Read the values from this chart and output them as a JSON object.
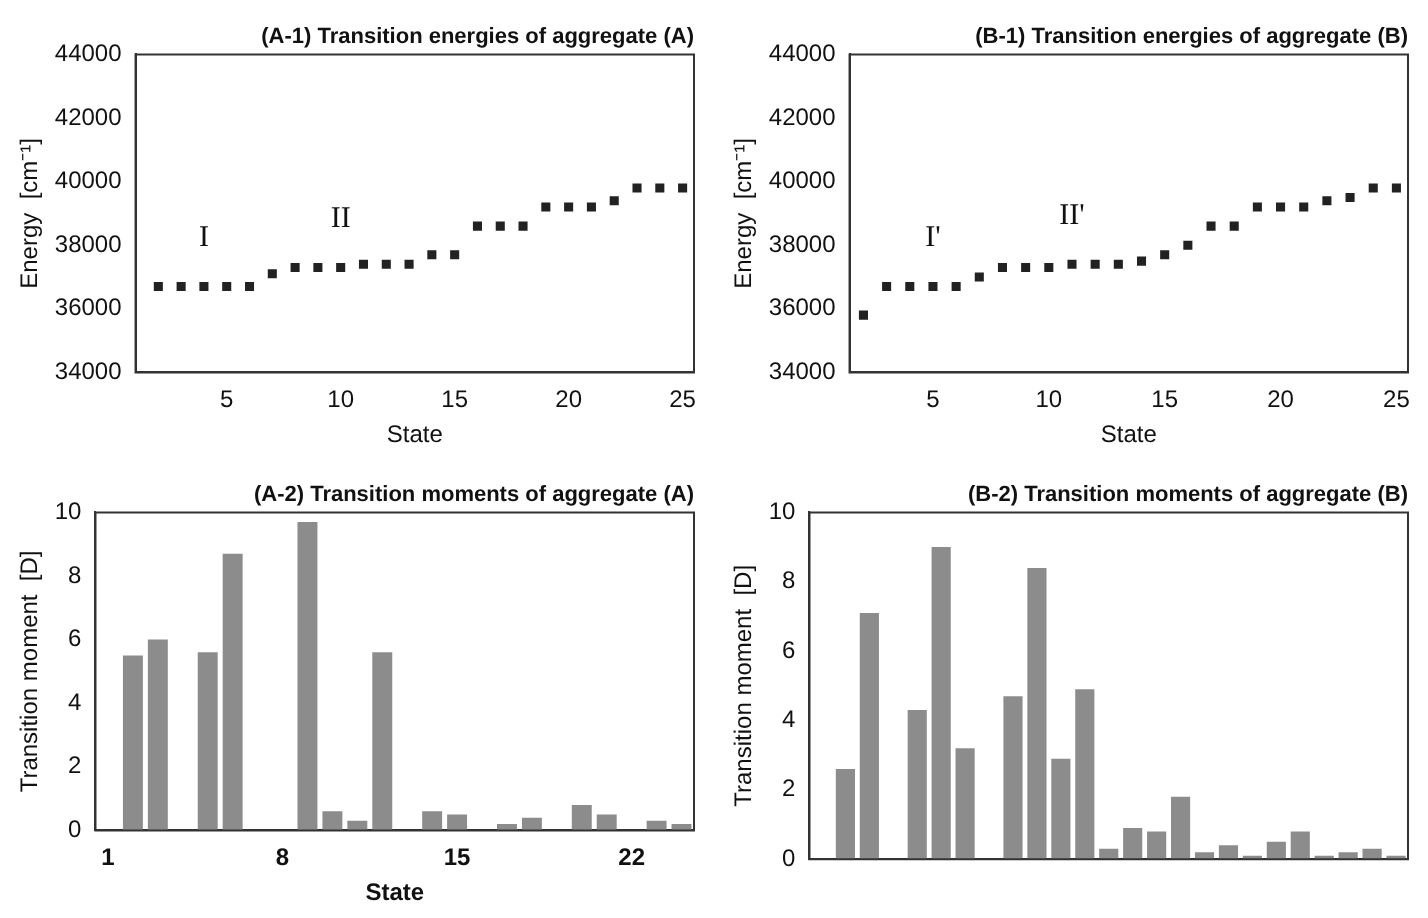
{
  "chart_data": [
    {
      "type": "scatter",
      "title": "(A-1) Transition energies of aggregate (A)",
      "xlabel": "State",
      "ylabel": "Energy  [cm⁻¹]",
      "series": [
        {
          "color": "#222222",
          "x": [
            2,
            3,
            4,
            5,
            6,
            7,
            8,
            9,
            10,
            11,
            12,
            13,
            14,
            15,
            16,
            17,
            18,
            19,
            20,
            21,
            22,
            23,
            24,
            25
          ],
          "values": [
            36700,
            36700,
            36700,
            36700,
            36700,
            37100,
            37300,
            37300,
            37300,
            37400,
            37400,
            37400,
            37700,
            37700,
            38600,
            38600,
            38600,
            39200,
            39200,
            39200,
            39400,
            39800,
            39800,
            39800
          ]
        }
      ],
      "xlim": [
        1,
        25.5
      ],
      "xticks": [
        5,
        10,
        15,
        20,
        25
      ],
      "ylim": [
        34000,
        44000
      ],
      "yticks": [
        34000,
        36000,
        38000,
        40000,
        42000,
        44000
      ],
      "grid": false,
      "legend": false,
      "marker": "square",
      "annotations": [
        {
          "text": "I",
          "x": 4,
          "y": 36700
        },
        {
          "text": "II",
          "x": 10,
          "y": 37300
        }
      ]
    },
    {
      "type": "scatter",
      "title": "(B-1) Transition energies of aggregate (B)",
      "xlabel": "State",
      "ylabel": "Energy  [cm⁻¹]",
      "series": [
        {
          "color": "#222222",
          "x": [
            2,
            3,
            4,
            5,
            6,
            7,
            8,
            9,
            10,
            11,
            12,
            13,
            14,
            15,
            16,
            17,
            18,
            19,
            20,
            21,
            22,
            23,
            24,
            25
          ],
          "values": [
            35800,
            36700,
            36700,
            36700,
            36700,
            37000,
            37300,
            37300,
            37300,
            37400,
            37400,
            37400,
            37500,
            37700,
            38000,
            38600,
            38600,
            39200,
            39200,
            39200,
            39400,
            39500,
            39800,
            39800
          ]
        }
      ],
      "xlim": [
        1.4,
        25.5
      ],
      "xticks": [
        5,
        10,
        15,
        20,
        25
      ],
      "ylim": [
        34000,
        44000
      ],
      "yticks": [
        34000,
        36000,
        38000,
        40000,
        42000,
        44000
      ],
      "grid": false,
      "legend": false,
      "marker": "square",
      "annotations": [
        {
          "text": "I'",
          "x": 5,
          "y": 36700
        },
        {
          "text": "II'",
          "x": 11,
          "y": 37400
        }
      ]
    },
    {
      "type": "bar",
      "title": "(A-2) Transition moments of aggregate (A)",
      "xlabel": "State",
      "ylabel": "Transition moment  [D]",
      "categories": [
        "1",
        null,
        null,
        null,
        null,
        null,
        null,
        "8",
        null,
        null,
        null,
        null,
        null,
        null,
        "15",
        null,
        null,
        null,
        null,
        null,
        null,
        "22",
        null,
        null
      ],
      "series": [
        {
          "color": "#8c8c8c",
          "values": [
            0,
            5.5,
            6.0,
            0,
            5.6,
            8.7,
            0,
            0,
            9.7,
            0.6,
            0.3,
            5.6,
            0,
            0.6,
            0.5,
            0,
            0.2,
            0.4,
            0,
            0.8,
            0.5,
            0,
            0.3,
            0.2
          ]
        }
      ],
      "ylim": [
        0,
        10
      ],
      "yticks": [
        0,
        2,
        4,
        6,
        8,
        10
      ],
      "grid": false,
      "legend": false
    },
    {
      "type": "bar",
      "title": "(B-2) Transition moments of aggregate (B)",
      "ylabel": "Transition moment  [D]",
      "categories": [
        null,
        null,
        null,
        null,
        null,
        null,
        null,
        null,
        null,
        null,
        null,
        null,
        null,
        null,
        null,
        null,
        null,
        null,
        null,
        null,
        null,
        null,
        null,
        null,
        null
      ],
      "series": [
        {
          "color": "#8c8c8c",
          "values": [
            0,
            2.6,
            7.1,
            0,
            4.3,
            9.0,
            3.2,
            0,
            4.7,
            8.4,
            2.9,
            4.9,
            0.3,
            0.9,
            0.8,
            1.8,
            0.2,
            0.4,
            0.1,
            0.5,
            0.8,
            0.1,
            0.2,
            0.3,
            0.1
          ]
        }
      ],
      "ylim": [
        0,
        10
      ],
      "yticks": [
        0,
        2,
        4,
        6,
        8,
        10
      ],
      "grid": false,
      "legend": false
    }
  ]
}
